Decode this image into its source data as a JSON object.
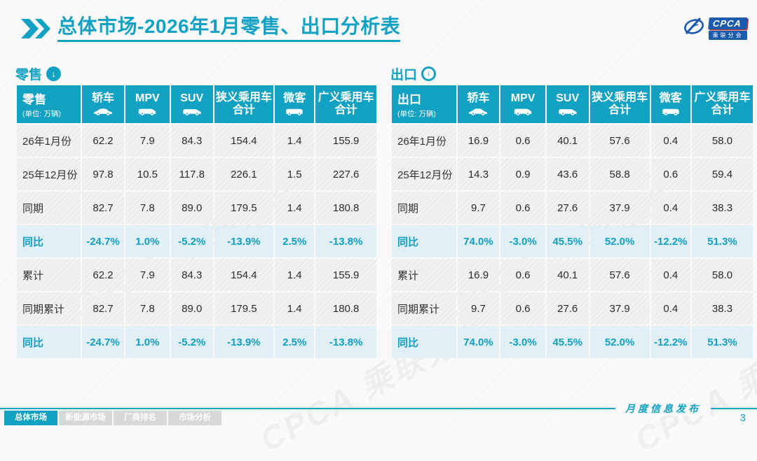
{
  "header": {
    "title_bold": "总体市场",
    "title_rest": "-2026年1月零售、出口分析表"
  },
  "logo": {
    "name": "CPCA",
    "sub": "乘联分会"
  },
  "colors": {
    "accent": "#12a2c4",
    "highlight_row_bg": "#e2f1f8",
    "normal_row_bg": "#efefef",
    "tab_inactive_bg": "#d9d9d9",
    "logo_blue": "#1a5bb0"
  },
  "watermark": "CPCA 乘联分会",
  "sections": [
    {
      "id": "retail",
      "label": "零售",
      "arrow_icon": "down-arrow-circle-icon",
      "table": {
        "first_header": "零售",
        "unit": "(单位: 万辆)",
        "columns": [
          {
            "label": "轿车",
            "icon": "sedan-icon"
          },
          {
            "label": "MPV",
            "icon": "mpv-icon"
          },
          {
            "label": "SUV",
            "icon": "suv-icon"
          },
          {
            "label": "狭义乘用车",
            "label2": "合计"
          },
          {
            "label": "微客",
            "icon": "microvan-icon"
          },
          {
            "label": "广义乘用车",
            "label2": "合计"
          }
        ],
        "rows": [
          {
            "label": "26年1月份",
            "type": "normal",
            "values": [
              "62.2",
              "7.9",
              "84.3",
              "154.4",
              "1.4",
              "155.9"
            ]
          },
          {
            "label": "25年12月份",
            "type": "normal",
            "values": [
              "97.8",
              "10.5",
              "117.8",
              "226.1",
              "1.5",
              "227.6"
            ]
          },
          {
            "label": "同期",
            "type": "normal",
            "values": [
              "82.7",
              "7.8",
              "89.0",
              "179.5",
              "1.4",
              "180.8"
            ]
          },
          {
            "label": "同比",
            "type": "highlight",
            "values": [
              "-24.7%",
              "1.0%",
              "-5.2%",
              "-13.9%",
              "2.5%",
              "-13.8%"
            ]
          },
          {
            "label": "累计",
            "type": "normal",
            "values": [
              "62.2",
              "7.9",
              "84.3",
              "154.4",
              "1.4",
              "155.9"
            ]
          },
          {
            "label": "同期累计",
            "type": "normal",
            "values": [
              "82.7",
              "7.8",
              "89.0",
              "179.5",
              "1.4",
              "180.8"
            ]
          },
          {
            "label": "同比",
            "type": "highlight",
            "values": [
              "-24.7%",
              "1.0%",
              "-5.2%",
              "-13.9%",
              "2.5%",
              "-13.8%"
            ]
          }
        ]
      }
    },
    {
      "id": "export",
      "label": "出口",
      "arrow_icon": "down-arrow-circle-icon",
      "table": {
        "first_header": "出口",
        "unit": "(单位: 万辆)",
        "columns": [
          {
            "label": "轿车",
            "icon": "sedan-icon"
          },
          {
            "label": "MPV",
            "icon": "mpv-icon"
          },
          {
            "label": "SUV",
            "icon": "suv-icon"
          },
          {
            "label": "狭义乘用车",
            "label2": "合计"
          },
          {
            "label": "微客",
            "icon": "microvan-icon"
          },
          {
            "label": "广义乘用车",
            "label2": "合计"
          }
        ],
        "rows": [
          {
            "label": "26年1月份",
            "type": "normal",
            "values": [
              "16.9",
              "0.6",
              "40.1",
              "57.6",
              "0.4",
              "58.0"
            ]
          },
          {
            "label": "25年12月份",
            "type": "normal",
            "values": [
              "14.3",
              "0.9",
              "43.6",
              "58.8",
              "0.6",
              "59.4"
            ]
          },
          {
            "label": "同期",
            "type": "normal",
            "values": [
              "9.7",
              "0.6",
              "27.6",
              "37.9",
              "0.4",
              "38.3"
            ]
          },
          {
            "label": "同比",
            "type": "highlight",
            "values": [
              "74.0%",
              "-3.0%",
              "45.5%",
              "52.0%",
              "-12.2%",
              "51.3%"
            ]
          },
          {
            "label": "累计",
            "type": "normal",
            "values": [
              "16.9",
              "0.6",
              "40.1",
              "57.6",
              "0.4",
              "58.0"
            ]
          },
          {
            "label": "同期累计",
            "type": "normal",
            "values": [
              "9.7",
              "0.6",
              "27.6",
              "37.9",
              "0.4",
              "38.3"
            ]
          },
          {
            "label": "同比",
            "type": "highlight",
            "values": [
              "74.0%",
              "-3.0%",
              "45.5%",
              "52.0%",
              "-12.2%",
              "51.3%"
            ]
          }
        ]
      }
    }
  ],
  "footer": {
    "note": "月度信息发布",
    "page_number": "3",
    "tabs": [
      {
        "label": "总体市场",
        "active": true
      },
      {
        "label": "新能源市场",
        "active": false
      },
      {
        "label": "厂商排名",
        "active": false
      },
      {
        "label": "市场分析",
        "active": false
      }
    ]
  }
}
